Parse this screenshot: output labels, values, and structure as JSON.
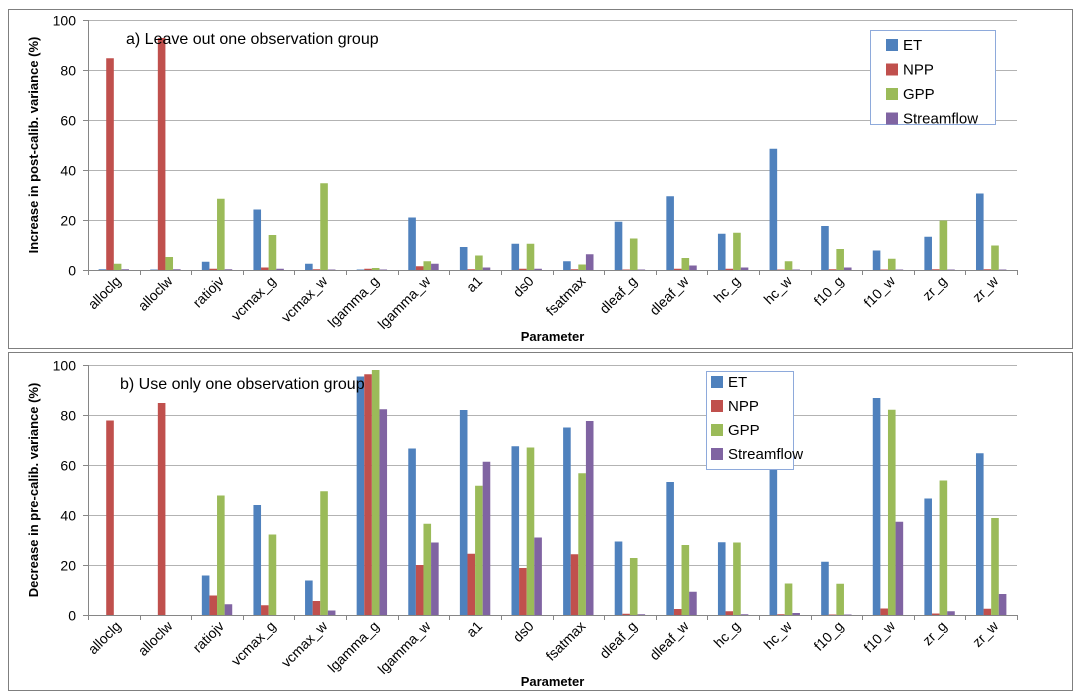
{
  "colors": {
    "ET": "#4F81BD",
    "NPP": "#C0504D",
    "GPP": "#9BBB59",
    "Streamflow": "#8064A2",
    "grid": "#b3b3b3",
    "panel_border": "#7f7f7f"
  },
  "chart_data": [
    {
      "type": "bar",
      "title": "a) Leave out one observation group",
      "xlabel": "Parameter",
      "ylabel": "Increase in post-calib. variance (%)",
      "ylim": [
        0,
        100
      ],
      "yticks": [
        0,
        20,
        40,
        60,
        80,
        100
      ],
      "grid": true,
      "legend_position": "top-right",
      "categories": [
        "alloclg",
        "alloclw",
        "ratiojv",
        "vcmax_g",
        "vcmax_w",
        "lgamma_g",
        "lgamma_w",
        "a1",
        "ds0",
        "fsatmax",
        "dleaf_g",
        "dleaf_w",
        "hc_g",
        "hc_w",
        "f10_g",
        "f10_w",
        "zr_g",
        "zr_w"
      ],
      "series": [
        {
          "name": "ET",
          "values": [
            0.3,
            0.2,
            3.3,
            24.2,
            2.5,
            0.2,
            21.0,
            9.2,
            10.5,
            3.5,
            19.3,
            29.5,
            14.5,
            48.5,
            17.6,
            7.8,
            13.3,
            30.6
          ]
        },
        {
          "name": "NPP",
          "values": [
            84.7,
            92.8,
            0.5,
            1.0,
            0.3,
            0.5,
            1.5,
            0.3,
            0.5,
            0.3,
            0.2,
            0.5,
            0.5,
            0.2,
            0.3,
            0.2,
            0.3,
            0.3
          ]
        },
        {
          "name": "GPP",
          "values": [
            2.5,
            5.2,
            28.5,
            14.0,
            34.7,
            0.8,
            3.5,
            5.8,
            10.5,
            2.2,
            12.6,
            4.8,
            14.9,
            3.5,
            8.4,
            4.5,
            19.8,
            9.8
          ]
        },
        {
          "name": "Streamflow",
          "values": [
            0.3,
            0.3,
            0.3,
            0.5,
            0.2,
            0.2,
            2.5,
            1.0,
            0.5,
            6.3,
            0.2,
            1.8,
            1.0,
            0.2,
            1.0,
            0.2,
            0.2,
            0.2
          ]
        }
      ]
    },
    {
      "type": "bar",
      "title": "b) Use only one observation group",
      "xlabel": "Parameter",
      "ylabel": "Decrease in pre-calib. variance (%)",
      "ylim": [
        0,
        100
      ],
      "yticks": [
        0,
        20,
        40,
        60,
        80,
        100
      ],
      "grid": true,
      "legend_position": "top-center",
      "categories": [
        "alloclg",
        "alloclw",
        "ratiojv",
        "vcmax_g",
        "vcmax_w",
        "lgamma_g",
        "lgamma_w",
        "a1",
        "ds0",
        "fsatmax",
        "dleaf_g",
        "dleaf_w",
        "hc_g",
        "hc_w",
        "f10_g",
        "f10_w",
        "zr_g",
        "zr_w"
      ],
      "series": [
        {
          "name": "ET",
          "values": [
            0.0,
            0.0,
            15.8,
            44.0,
            13.8,
            95.4,
            66.6,
            82.0,
            67.5,
            75.0,
            29.4,
            53.2,
            29.1,
            58.2,
            21.3,
            86.8,
            46.6,
            64.7
          ]
        },
        {
          "name": "NPP",
          "values": [
            77.8,
            84.8,
            7.8,
            3.9,
            5.6,
            96.3,
            20.0,
            24.5,
            18.8,
            24.3,
            0.5,
            2.4,
            1.5,
            0.3,
            0.2,
            2.6,
            0.6,
            2.5
          ]
        },
        {
          "name": "GPP",
          "values": [
            0.0,
            0.0,
            47.8,
            32.2,
            49.5,
            98.0,
            36.5,
            51.7,
            67.0,
            56.7,
            22.8,
            28.0,
            29.0,
            12.6,
            12.5,
            82.1,
            53.8,
            38.8
          ]
        },
        {
          "name": "Streamflow",
          "values": [
            0.0,
            0.0,
            4.3,
            0.0,
            1.8,
            82.3,
            29.0,
            61.3,
            31.0,
            77.6,
            0.3,
            9.3,
            0.3,
            0.8,
            0.2,
            37.3,
            1.5,
            8.4
          ]
        }
      ]
    }
  ]
}
